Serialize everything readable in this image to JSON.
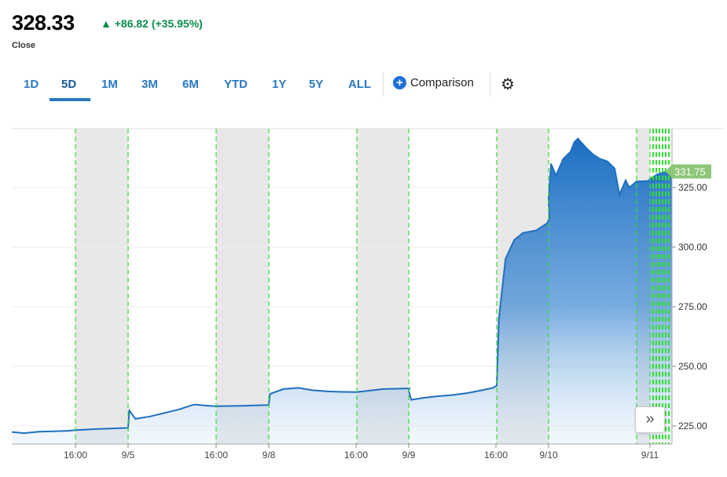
{
  "header": {
    "price": "328.33",
    "change": "▲ +86.82 (+35.95%)",
    "status": "Close"
  },
  "tabs": [
    "1D",
    "5D",
    "1M",
    "3M",
    "6M",
    "YTD",
    "1Y",
    "5Y",
    "ALL"
  ],
  "active_tab": "5D",
  "comparison_label": "Comparison",
  "icons": {
    "comparison": "plus-circle-icon",
    "settings": "gear-icon",
    "next": "double-chevron-right-icon"
  },
  "colors": {
    "line": "#1f6fbf",
    "fill_top": "#1b6ec2",
    "last_label": "#8cc677",
    "positive": "#098b4e",
    "session_line": "#33dd33",
    "shade": "#e8e8e8"
  },
  "chart_data": {
    "type": "area",
    "last_price_label": "331.75",
    "ylim": [
      218,
      350
    ],
    "y_ticks": [
      "225.00",
      "250.00",
      "275.00",
      "300.00",
      "325.00"
    ],
    "x_ticks": [
      "16:00",
      "9/5",
      "16:00",
      "9/8",
      "16:00",
      "9/9",
      "16:00",
      "9/10",
      "9/11"
    ],
    "grid": true,
    "series": [
      {
        "points": [
          [
            "9/4 07:20",
            222.5
          ],
          [
            "9/4 09:00",
            222
          ],
          [
            "9/4 11:00",
            222.6
          ],
          [
            "9/4 13:00",
            222.8
          ],
          [
            "9/4 15:00",
            223
          ],
          [
            "9/4 16:00",
            223.3
          ],
          [
            "9/4 18:00",
            223.8
          ],
          [
            "9/4 20:00",
            224.2
          ],
          [
            "9/5 04:00",
            224.5
          ],
          [
            "9/5 04:10",
            231.5
          ],
          [
            "9/5 05:00",
            228
          ],
          [
            "9/5 07:00",
            229
          ],
          [
            "9/5 09:00",
            230.5
          ],
          [
            "9/5 11:00",
            232
          ],
          [
            "9/5 13:00",
            234
          ],
          [
            "9/5 15:00",
            233.5
          ],
          [
            "9/5 16:00",
            233.3
          ],
          [
            "9/5 18:00",
            233.5
          ],
          [
            "9/5 20:00",
            233.8
          ],
          [
            "9/8 04:00",
            234
          ],
          [
            "9/8 04:10",
            238.5
          ],
          [
            "9/8 06:00",
            240.5
          ],
          [
            "9/8 08:00",
            241
          ],
          [
            "9/8 10:00",
            240
          ],
          [
            "9/8 12:00",
            239.5
          ],
          [
            "9/8 14:00",
            239.3
          ],
          [
            "9/8 16:00",
            239.2
          ],
          [
            "9/8 18:00",
            240.5
          ],
          [
            "9/8 20:00",
            240.8
          ],
          [
            "9/9 04:00",
            240
          ],
          [
            "9/9 04:20",
            236
          ],
          [
            "9/9 06:00",
            236.8
          ],
          [
            "9/9 08:00",
            237.5
          ],
          [
            "9/9 10:00",
            238
          ],
          [
            "9/9 12:00",
            238.8
          ],
          [
            "9/9 14:00",
            240
          ],
          [
            "9/9 15:30",
            241
          ],
          [
            "9/9 16:00",
            242
          ],
          [
            "9/9 16:10",
            270
          ],
          [
            "9/9 16:40",
            295
          ],
          [
            "9/9 17:20",
            303
          ],
          [
            "9/9 18:00",
            306
          ],
          [
            "9/9 19:00",
            307
          ],
          [
            "9/9 19:50",
            310
          ],
          [
            "9/9 20:00",
            312
          ],
          [
            "9/10 04:00",
            320
          ],
          [
            "9/10 04:20",
            335
          ],
          [
            "9/10 05:00",
            330
          ],
          [
            "9/10 06:00",
            337
          ],
          [
            "9/10 07:00",
            340
          ],
          [
            "9/10 07:30",
            344
          ],
          [
            "9/10 08:00",
            345.5
          ],
          [
            "9/10 09:00",
            342
          ],
          [
            "9/10 10:00",
            339
          ],
          [
            "9/10 11:00",
            337
          ],
          [
            "9/10 12:00",
            336
          ],
          [
            "9/10 13:00",
            333
          ],
          [
            "9/10 13:40",
            322
          ],
          [
            "9/10 14:30",
            328
          ],
          [
            "9/10 15:00",
            325
          ],
          [
            "9/10 16:00",
            327.5
          ],
          [
            "9/10 18:00",
            328
          ],
          [
            "9/11 04:00",
            328.5
          ],
          [
            "9/11 05:00",
            330.5
          ],
          [
            "9/11 06:00",
            331.5
          ],
          [
            "9/11 07:00",
            329
          ]
        ]
      }
    ]
  }
}
